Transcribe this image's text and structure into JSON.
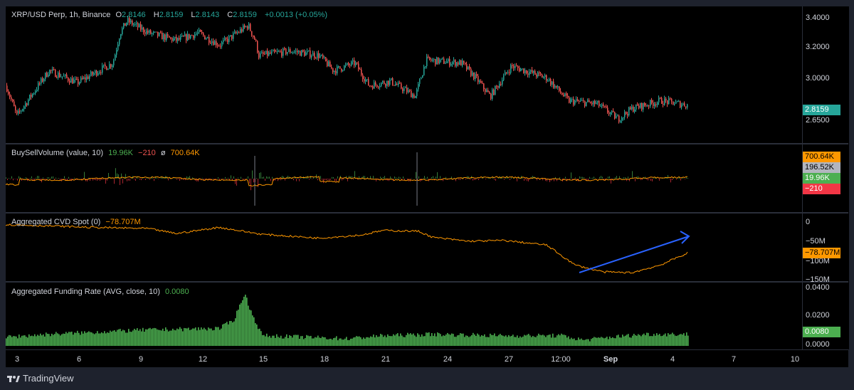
{
  "legend_main": {
    "symbol": "XRP/USD Perp, 1h, Binance",
    "o_label": "O",
    "o": "2.8146",
    "h_label": "H",
    "h": "2.8159",
    "l_label": "L",
    "l": "2.8143",
    "c_label": "C",
    "c": "2.8159",
    "change": "+0.0013 (+0.05%)"
  },
  "legend_bsv": {
    "name": "BuySellVolume (value, 10)",
    "v1": "19.96K",
    "v2": "−210",
    "sep": "ø",
    "v3": "700.64K"
  },
  "legend_cvd": {
    "name": "Aggregated CVD Spot (0)",
    "value": "−78.707M"
  },
  "legend_fr": {
    "name": "Aggregated Funding Rate (AVG, close, 10)",
    "value": "0.0080"
  },
  "price_axis": [
    "3.4000",
    "3.2000",
    "3.0000",
    "2.6500"
  ],
  "price_tag": "2.8159",
  "bsv_tags": [
    "700.64K",
    "196.52K",
    "19.96K",
    "−210"
  ],
  "cvd_axis": [
    "0",
    "−50M",
    "−100M",
    "−150M"
  ],
  "cvd_tag": "−78.707M",
  "fr_axis": [
    "0.0400",
    "0.0200",
    "0.0000"
  ],
  "fr_tag": "0.0080",
  "time_axis": [
    "3",
    "6",
    "9",
    "12",
    "15",
    "18",
    "21",
    "24",
    "27",
    "12:00",
    "Sep",
    "4",
    "7",
    "10"
  ],
  "brand": "TradingView",
  "colors": {
    "up": "#26a69a",
    "down": "#ef5350",
    "orange": "#ff9800",
    "funding": "#4caf50",
    "arrow": "#2962ff",
    "bsv_grey": "#b2b5be",
    "bsv_green": "#4caf50",
    "bsv_red": "#f23645"
  },
  "chart_data": [
    {
      "type": "candlestick",
      "series": [
        {
          "name": "XRP/USD Perp",
          "x": [
            "3",
            "6",
            "9",
            "12",
            "15",
            "18",
            "21",
            "24",
            "27",
            "Sep",
            "4"
          ],
          "close": [
            2.95,
            3.05,
            3.35,
            3.3,
            3.2,
            3.12,
            2.95,
            3.08,
            3.0,
            2.78,
            2.82
          ]
        }
      ]
    },
    {
      "type": "line",
      "series": [
        {
          "name": "Aggregated CVD Spot",
          "values": [
            -5,
            -10,
            -22,
            -12,
            -35,
            -30,
            -20,
            -30,
            -55,
            -80,
            -130,
            -135,
            -78.7
          ]
        }
      ]
    },
    {
      "type": "bar",
      "series": [
        {
          "name": "Aggregated Funding Rate",
          "values": [
            0.006,
            0.008,
            0.01,
            0.011,
            0.036,
            0.007,
            0.005,
            0.007,
            0.008,
            0.007,
            0.006,
            0.007,
            0.008
          ]
        }
      ]
    }
  ]
}
